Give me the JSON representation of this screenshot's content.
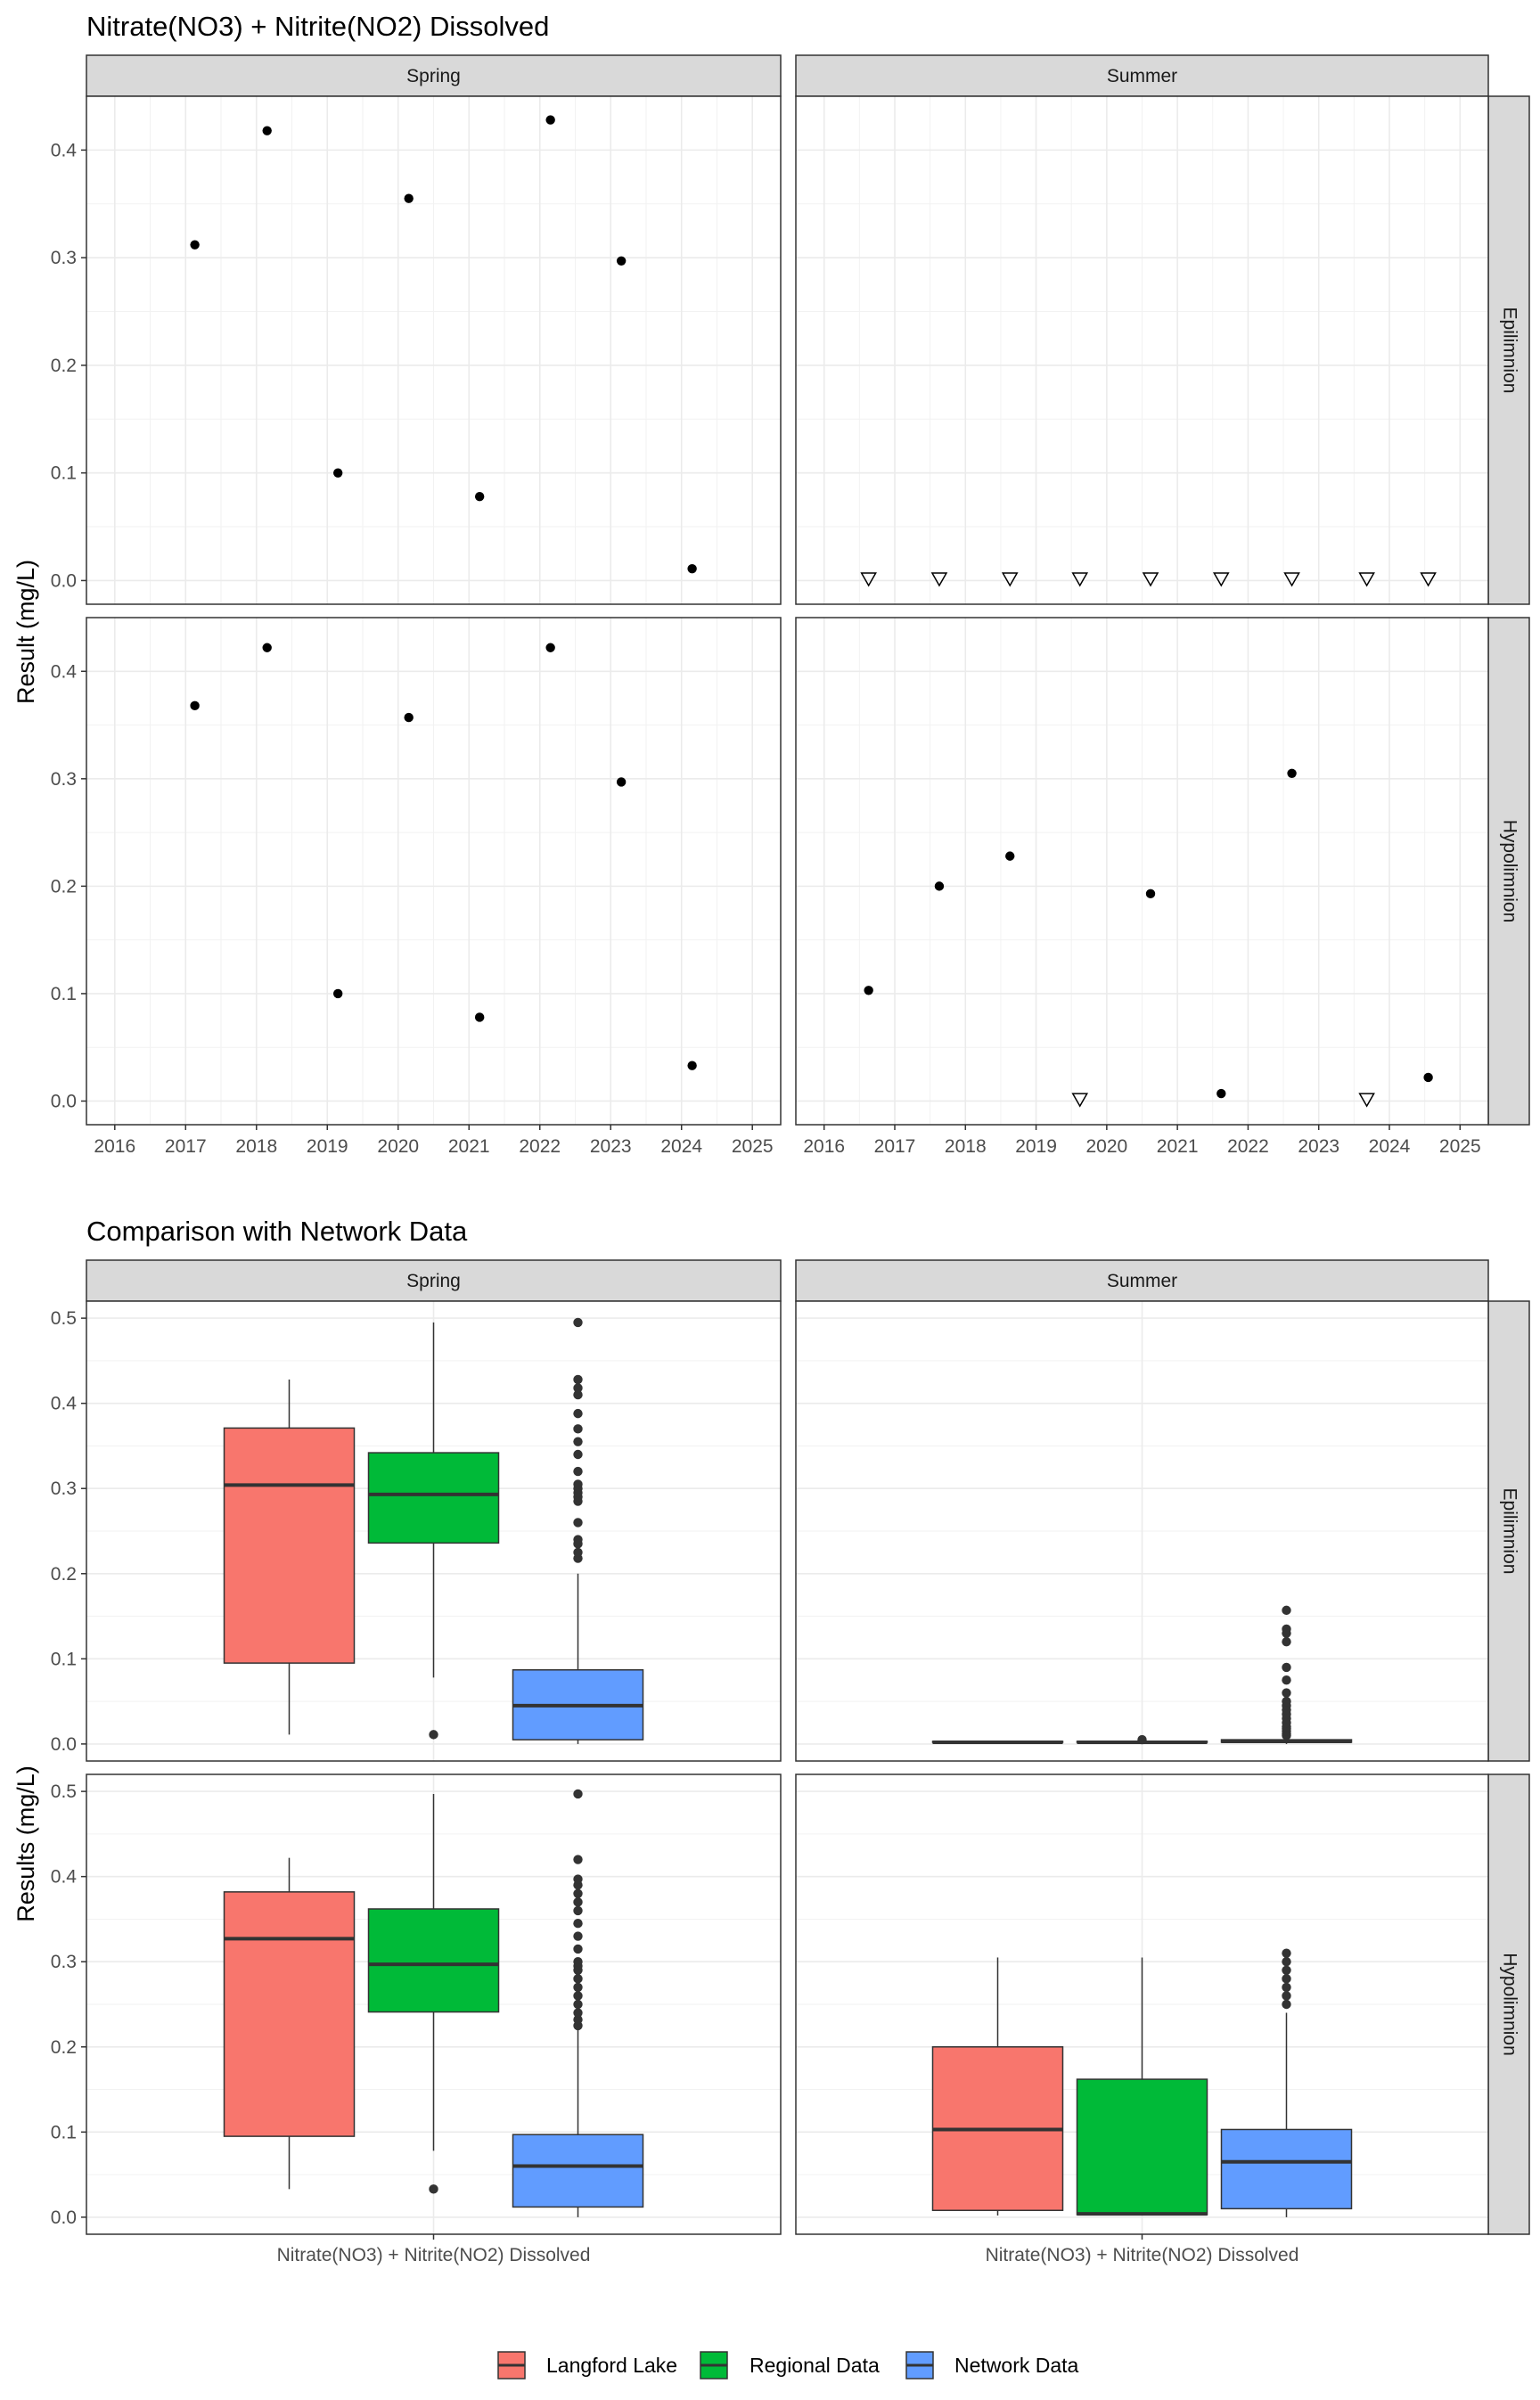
{
  "chart_data": [
    {
      "type": "scatter",
      "title": "Nitrate(NO3) + Nitrite(NO2) Dissolved",
      "ylabel": "Result (mg/L)",
      "xlabel": "",
      "x_ticks": [
        "2016",
        "2017",
        "2018",
        "2019",
        "2020",
        "2021",
        "2022",
        "2023",
        "2024",
        "2025"
      ],
      "xlim": [
        2015.6,
        2025.4
      ],
      "ylim": [
        -0.022,
        0.45
      ],
      "y_ticks": [
        "0.0",
        "0.1",
        "0.2",
        "0.3",
        "0.4"
      ],
      "grid": true,
      "col_facets": [
        "Spring",
        "Summer"
      ],
      "row_facets": [
        "Epilimnion",
        "Hypolimnion"
      ],
      "panels": [
        {
          "season": "Spring",
          "layer": "Epilimnion",
          "points": [
            {
              "x": 2017.13,
              "y": 0.312,
              "detected": true
            },
            {
              "x": 2018.15,
              "y": 0.418,
              "detected": true
            },
            {
              "x": 2019.15,
              "y": 0.1,
              "detected": true
            },
            {
              "x": 2020.15,
              "y": 0.355,
              "detected": true
            },
            {
              "x": 2021.15,
              "y": 0.078,
              "detected": true
            },
            {
              "x": 2022.15,
              "y": 0.428,
              "detected": true
            },
            {
              "x": 2023.15,
              "y": 0.297,
              "detected": true
            },
            {
              "x": 2024.15,
              "y": 0.011,
              "detected": true
            }
          ]
        },
        {
          "season": "Summer",
          "layer": "Epilimnion",
          "points": [
            {
              "x": 2016.63,
              "y": 0.002,
              "detected": false
            },
            {
              "x": 2017.63,
              "y": 0.002,
              "detected": false
            },
            {
              "x": 2018.63,
              "y": 0.002,
              "detected": false
            },
            {
              "x": 2019.62,
              "y": 0.002,
              "detected": false
            },
            {
              "x": 2020.62,
              "y": 0.002,
              "detected": false
            },
            {
              "x": 2021.62,
              "y": 0.002,
              "detected": false
            },
            {
              "x": 2022.62,
              "y": 0.002,
              "detected": false
            },
            {
              "x": 2023.68,
              "y": 0.002,
              "detected": false
            },
            {
              "x": 2024.55,
              "y": 0.002,
              "detected": false
            }
          ]
        },
        {
          "season": "Spring",
          "layer": "Hypolimnion",
          "points": [
            {
              "x": 2017.13,
              "y": 0.368,
              "detected": true
            },
            {
              "x": 2018.15,
              "y": 0.422,
              "detected": true
            },
            {
              "x": 2019.15,
              "y": 0.1,
              "detected": true
            },
            {
              "x": 2020.15,
              "y": 0.357,
              "detected": true
            },
            {
              "x": 2021.15,
              "y": 0.078,
              "detected": true
            },
            {
              "x": 2022.15,
              "y": 0.422,
              "detected": true
            },
            {
              "x": 2023.15,
              "y": 0.297,
              "detected": true
            },
            {
              "x": 2024.15,
              "y": 0.033,
              "detected": true
            }
          ]
        },
        {
          "season": "Summer",
          "layer": "Hypolimnion",
          "points": [
            {
              "x": 2016.63,
              "y": 0.103,
              "detected": true
            },
            {
              "x": 2017.63,
              "y": 0.2,
              "detected": true
            },
            {
              "x": 2018.63,
              "y": 0.228,
              "detected": true
            },
            {
              "x": 2019.62,
              "y": 0.002,
              "detected": false
            },
            {
              "x": 2020.62,
              "y": 0.193,
              "detected": true
            },
            {
              "x": 2021.62,
              "y": 0.007,
              "detected": true
            },
            {
              "x": 2022.62,
              "y": 0.305,
              "detected": true
            },
            {
              "x": 2023.68,
              "y": 0.002,
              "detected": false
            },
            {
              "x": 2024.55,
              "y": 0.022,
              "detected": true
            }
          ]
        }
      ]
    },
    {
      "type": "box",
      "title": "Comparison with Network Data",
      "ylabel": "Results (mg/L)",
      "category": "Nitrate(NO3) + Nitrite(NO2) Dissolved",
      "ylim": [
        -0.02,
        0.52
      ],
      "y_ticks": [
        "0.0",
        "0.1",
        "0.2",
        "0.3",
        "0.4",
        "0.5"
      ],
      "grid": true,
      "col_facets": [
        "Spring",
        "Summer"
      ],
      "row_facets": [
        "Epilimnion",
        "Hypolimnion"
      ],
      "legend": {
        "position": "bottom",
        "entries": [
          {
            "name": "Langford Lake",
            "color": "#F8766D"
          },
          {
            "name": "Regional Data",
            "color": "#00BA38"
          },
          {
            "name": "Network Data",
            "color": "#619CFF"
          }
        ]
      },
      "panels": [
        {
          "season": "Spring",
          "layer": "Epilimnion",
          "boxes": [
            {
              "series": "Langford Lake",
              "min": 0.011,
              "q1": 0.095,
              "median": 0.304,
              "q3": 0.371,
              "max": 0.428,
              "outliers": []
            },
            {
              "series": "Regional Data",
              "min": 0.078,
              "q1": 0.236,
              "median": 0.293,
              "q3": 0.342,
              "max": 0.495,
              "outliers": [
                0.011
              ]
            },
            {
              "series": "Network Data",
              "min": 0.0,
              "q1": 0.005,
              "median": 0.045,
              "q3": 0.087,
              "max": 0.2,
              "outliers": [
                0.218,
                0.225,
                0.235,
                0.24,
                0.26,
                0.285,
                0.29,
                0.295,
                0.3,
                0.305,
                0.32,
                0.34,
                0.355,
                0.37,
                0.388,
                0.41,
                0.418,
                0.428,
                0.495
              ]
            }
          ]
        },
        {
          "season": "Summer",
          "layer": "Epilimnion",
          "boxes": [
            {
              "series": "Langford Lake",
              "min": 0.002,
              "q1": 0.002,
              "median": 0.002,
              "q3": 0.003,
              "max": 0.003,
              "outliers": []
            },
            {
              "series": "Regional Data",
              "min": 0.002,
              "q1": 0.002,
              "median": 0.002,
              "q3": 0.003,
              "max": 0.003,
              "outliers": [
                0.005
              ]
            },
            {
              "series": "Network Data",
              "min": 0.0,
              "q1": 0.002,
              "median": 0.003,
              "q3": 0.005,
              "max": 0.008,
              "outliers": [
                0.01,
                0.012,
                0.015,
                0.018,
                0.02,
                0.025,
                0.03,
                0.035,
                0.04,
                0.045,
                0.05,
                0.06,
                0.075,
                0.09,
                0.12,
                0.13,
                0.135,
                0.157
              ]
            }
          ]
        },
        {
          "season": "Spring",
          "layer": "Hypolimnion",
          "boxes": [
            {
              "series": "Langford Lake",
              "min": 0.033,
              "q1": 0.095,
              "median": 0.327,
              "q3": 0.382,
              "max": 0.422,
              "outliers": []
            },
            {
              "series": "Regional Data",
              "min": 0.078,
              "q1": 0.241,
              "median": 0.297,
              "q3": 0.362,
              "max": 0.497,
              "outliers": [
                0.033
              ]
            },
            {
              "series": "Network Data",
              "min": 0.0,
              "q1": 0.012,
              "median": 0.06,
              "q3": 0.097,
              "max": 0.22,
              "outliers": [
                0.225,
                0.232,
                0.24,
                0.25,
                0.26,
                0.27,
                0.28,
                0.29,
                0.295,
                0.3,
                0.315,
                0.33,
                0.345,
                0.36,
                0.37,
                0.38,
                0.39,
                0.397,
                0.42,
                0.497
              ]
            }
          ]
        },
        {
          "season": "Summer",
          "layer": "Hypolimnion",
          "boxes": [
            {
              "series": "Langford Lake",
              "min": 0.002,
              "q1": 0.008,
              "median": 0.103,
              "q3": 0.2,
              "max": 0.305,
              "outliers": []
            },
            {
              "series": "Regional Data",
              "min": 0.002,
              "q1": 0.003,
              "median": 0.004,
              "q3": 0.162,
              "max": 0.305,
              "outliers": []
            },
            {
              "series": "Network Data",
              "min": 0.0,
              "q1": 0.01,
              "median": 0.065,
              "q3": 0.103,
              "max": 0.24,
              "outliers": [
                0.25,
                0.26,
                0.27,
                0.28,
                0.29,
                0.3,
                0.31
              ]
            }
          ]
        }
      ]
    }
  ]
}
